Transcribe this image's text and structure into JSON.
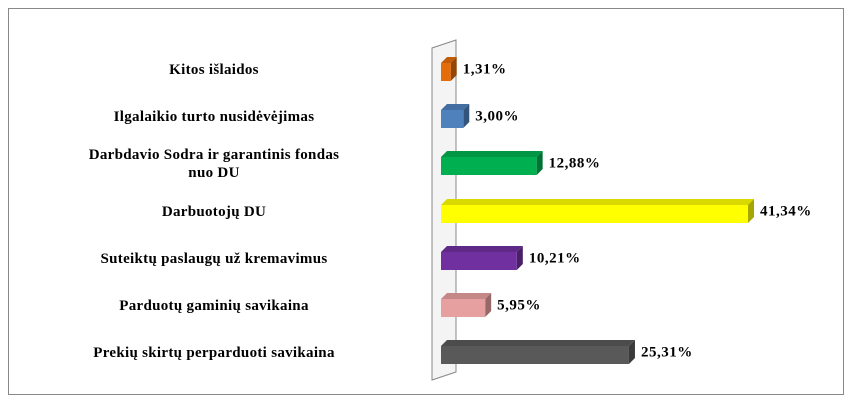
{
  "chart_data": {
    "type": "bar",
    "orientation": "horizontal",
    "categories": [
      "Kitos išlaidos",
      "Ilgalaikio turto nusidėvėjimas",
      "Darbdavio Sodra ir garantinis fondas\nnuo DU",
      "Darbuotojų DU",
      "Suteiktų paslaugų už kremavimus",
      "Parduotų gaminių savikaina",
      "Prekių skirtų perparduoti savikaina"
    ],
    "values": [
      1.31,
      3.0,
      12.88,
      41.34,
      10.21,
      5.95,
      25.31
    ],
    "value_labels": [
      "1,31%",
      "3,00%",
      "12,88%",
      "41,34%",
      "10,21%",
      "5,95%",
      "25,31%"
    ],
    "colors": [
      "#e46c0a",
      "#4f81bd",
      "#00b050",
      "#ffff00",
      "#7030a0",
      "#e6a0a0",
      "#595959"
    ]
  }
}
